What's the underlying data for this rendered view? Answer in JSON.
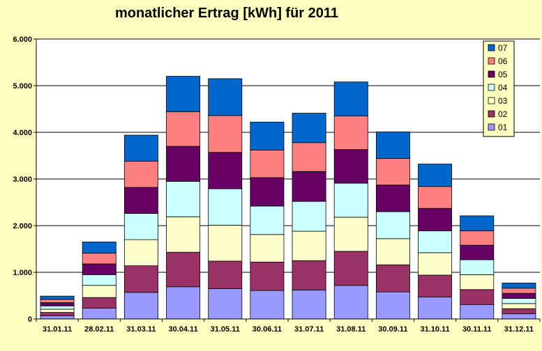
{
  "chart_data": {
    "type": "bar",
    "stacked": true,
    "title": "monatlicher Ertrag [kWh] für 2011",
    "categories": [
      "31.01.11",
      "28.02.11",
      "31.03.11",
      "30.04.11",
      "31.05.11",
      "30.06.11",
      "31.07.11",
      "31.08.11",
      "30.09.11",
      "31.10.11",
      "30.11.11",
      "31.12.11"
    ],
    "y_ticks": [
      "0",
      "1.000",
      "2.000",
      "3.000",
      "4.000",
      "5.000",
      "6.000"
    ],
    "ylim": [
      0,
      6000
    ],
    "grid": true,
    "legend_position": "top-right",
    "series": [
      {
        "name": "01",
        "color": "#9999ff",
        "values": [
          70,
          230,
          570,
          690,
          650,
          610,
          620,
          720,
          580,
          470,
          310,
          110
        ]
      },
      {
        "name": "02",
        "color": "#993366",
        "values": [
          70,
          230,
          570,
          740,
          590,
          610,
          630,
          730,
          580,
          470,
          320,
          110
        ]
      },
      {
        "name": "03",
        "color": "#ffffcc",
        "values": [
          70,
          260,
          560,
          760,
          770,
          590,
          630,
          730,
          560,
          480,
          320,
          110
        ]
      },
      {
        "name": "04",
        "color": "#ccffff",
        "values": [
          70,
          230,
          560,
          760,
          780,
          610,
          640,
          730,
          580,
          470,
          320,
          110
        ]
      },
      {
        "name": "05",
        "color": "#660066",
        "values": [
          70,
          230,
          560,
          750,
          780,
          610,
          640,
          720,
          570,
          480,
          310,
          110
        ]
      },
      {
        "name": "06",
        "color": "#ff8080",
        "values": [
          70,
          230,
          560,
          740,
          790,
          590,
          620,
          720,
          570,
          470,
          310,
          110
        ]
      },
      {
        "name": "07",
        "color": "#0066cc",
        "values": [
          70,
          240,
          560,
          760,
          790,
          600,
          630,
          730,
          570,
          480,
          320,
          110
        ]
      }
    ]
  }
}
